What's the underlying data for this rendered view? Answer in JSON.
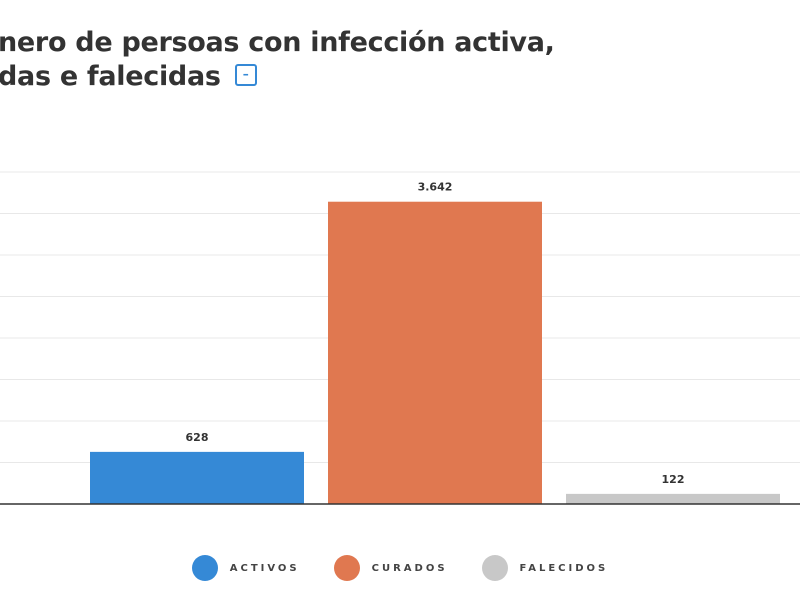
{
  "title": {
    "line1": "nero de persoas con infección activa,",
    "line2": "das e falecidas",
    "collapse_icon": "minus-square-icon",
    "collapse_label": "–"
  },
  "chart_data": {
    "type": "bar",
    "categories": [
      "ACTIVOS",
      "CURADOS",
      "FALECIDOS"
    ],
    "values": [
      628,
      3642,
      122
    ],
    "value_labels": [
      "628",
      "3.642",
      "122"
    ],
    "colors": [
      "#3589d6",
      "#e07850",
      "#c8c8c8"
    ],
    "ylim": [
      0,
      4000
    ],
    "ytick_step": 500,
    "grid": true,
    "legend_placement": "bottom"
  }
}
